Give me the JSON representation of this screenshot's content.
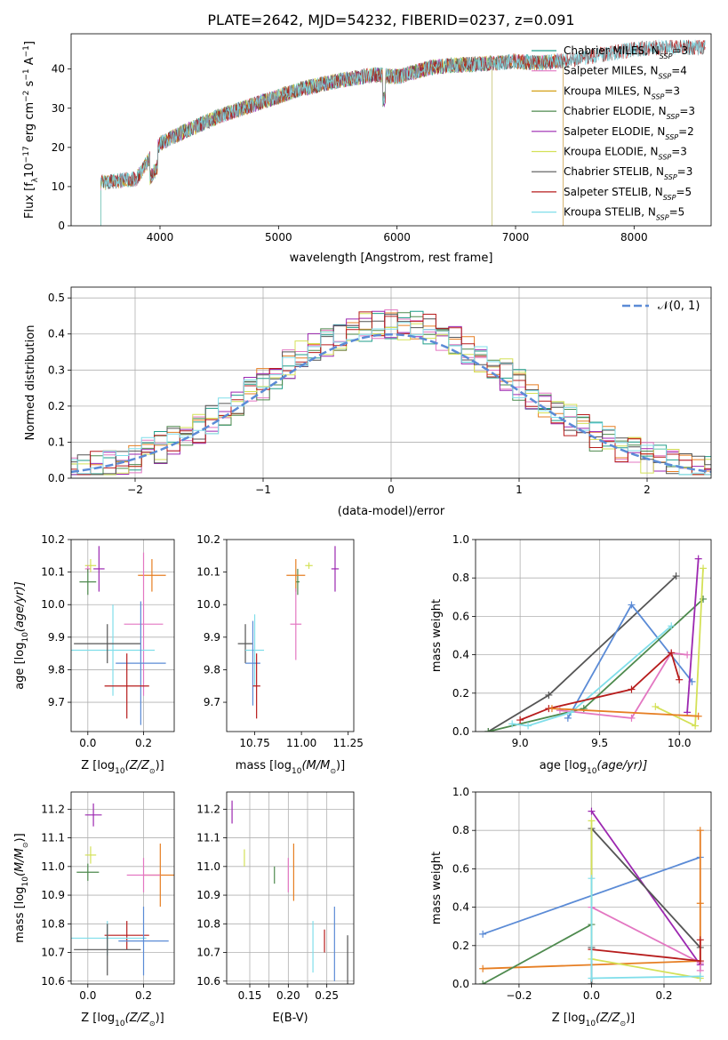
{
  "figure_title": "PLATE=2642, MJD=54232, FIBERID=0237, z=0.091",
  "colors": {
    "Chabrier MILES": "#1f9e89",
    "Salpeter MILES": "#e377c2",
    "Kroupa MILES": "#d4a017",
    "Chabrier ELODIE": "#4e8a4e",
    "Salpeter ELODIE": "#9c27b0",
    "Kroupa ELODIE": "#d4e157",
    "Chabrier STELIB": "#555555",
    "Salpeter STELIB": "#b71c1c",
    "Kroupa STELIB": "#80deea",
    "Orange": "#e67e22",
    "Blue": "#5b8bd6"
  },
  "chart_data": [
    {
      "id": "spectrum",
      "type": "line",
      "xlabel": "wavelength [Angstrom, rest frame]",
      "ylabel": "Flux [f",
      "ylabel_parts": [
        "Flux [f",
        "λ",
        "10",
        "−17",
        " erg cm",
        "−2",
        " s",
        "−1",
        " A",
        "−1",
        "]"
      ],
      "xlim": [
        3250,
        8650
      ],
      "ylim": [
        0,
        49
      ],
      "xticks": [
        4000,
        5000,
        6000,
        7000,
        8000
      ],
      "yticks": [
        0,
        10,
        20,
        30,
        40
      ],
      "continuum": {
        "x": [
          3500,
          3800,
          4000,
          4200,
          4500,
          4800,
          5000,
          5200,
          5500,
          5800,
          6000,
          6300,
          6500,
          6800,
          7000,
          7200,
          7500,
          7800,
          8000,
          8200
        ],
        "y": [
          11,
          12,
          21,
          24,
          28,
          31,
          33,
          35,
          37,
          38.5,
          38,
          40.5,
          41,
          41.5,
          42,
          41.5,
          42.5,
          44,
          45,
          45.5
        ]
      },
      "legend": [
        {
          "label": "Chabrier MILES",
          "nssp": "3"
        },
        {
          "label": "Salpeter MILES",
          "nssp": "4"
        },
        {
          "label": "Kroupa MILES",
          "nssp": "3"
        },
        {
          "label": "Chabrier ELODIE",
          "nssp": "3"
        },
        {
          "label": "Salpeter ELODIE",
          "nssp": "2"
        },
        {
          "label": "Kroupa ELODIE",
          "nssp": "3"
        },
        {
          "label": "Chabrier STELIB",
          "nssp": "3"
        },
        {
          "label": "Salpeter STELIB",
          "nssp": "5"
        },
        {
          "label": "Kroupa STELIB",
          "nssp": "5"
        }
      ],
      "legend_nssp_prefix": "N",
      "legend_nssp_sub": "SSP",
      "legend_placement": "top-right"
    },
    {
      "id": "residuals",
      "type": "histogram",
      "xlabel": "(data-model)/error",
      "ylabel": "Normed distribution",
      "xlim": [
        -2.5,
        2.5
      ],
      "ylim": [
        0,
        0.53
      ],
      "xticks": [
        -2,
        -1,
        0,
        1,
        2
      ],
      "yticks": [
        0.0,
        0.1,
        0.2,
        0.3,
        0.4,
        0.5
      ],
      "grid": true,
      "bin_width": 0.1,
      "gaussian_label": "𝒩(0, 1)",
      "legend_placement": "top-right"
    },
    {
      "id": "age_vs_Z",
      "type": "errorbar",
      "xlabel": "Z [log",
      "xlabel_sub": "10",
      "xlabel_tail": "(Z/Z",
      "xlabel_end": ")]",
      "ylabel": "age  [log",
      "ylabel_sub": "10",
      "ylabel_tail": "(age/yr)]",
      "xlim": [
        -0.06,
        0.31
      ],
      "ylim": [
        9.61,
        10.2
      ],
      "xticks": [
        0.0,
        0.2
      ],
      "yticks": [
        9.7,
        9.8,
        9.9,
        10.0,
        10.1,
        10.2
      ],
      "grid": true,
      "points": [
        {
          "c": "Salpeter ELODIE",
          "x": 0.04,
          "y": 10.11,
          "xe": 0.02,
          "ye": 0.07
        },
        {
          "c": "Kroupa ELODIE",
          "x": 0.01,
          "y": 10.12,
          "xe": 0.02,
          "ye": 0.02
        },
        {
          "c": "Salpeter MILES",
          "x": 0.0,
          "y": 10.11,
          "xe": 0.01,
          "ye": 0.01
        },
        {
          "c": "Chabrier ELODIE",
          "x": 0.0,
          "y": 10.07,
          "xe": 0.03,
          "ye": 0.04
        },
        {
          "c": "Orange",
          "x": 0.23,
          "y": 10.09,
          "xe": 0.05,
          "ye": 0.05
        },
        {
          "c": "Salpeter MILES",
          "x": 0.2,
          "y": 9.94,
          "xe": 0.07,
          "ye": 0.22
        },
        {
          "c": "Kroupa STELIB",
          "x": 0.09,
          "y": 9.86,
          "xe": 0.15,
          "ye": 0.14
        },
        {
          "c": "Chabrier STELIB",
          "x": 0.07,
          "y": 9.88,
          "xe": 0.12,
          "ye": 0.06
        },
        {
          "c": "Blue",
          "x": 0.19,
          "y": 9.82,
          "xe": 0.09,
          "ye": 0.19
        },
        {
          "c": "Salpeter STELIB",
          "x": 0.14,
          "y": 9.75,
          "xe": 0.08,
          "ye": 0.1
        }
      ]
    },
    {
      "id": "age_vs_mass",
      "type": "errorbar",
      "xlabel": "mass [log",
      "xlabel_sub": "10",
      "xlabel_tail": "(M/M",
      "xlabel_end": ")]",
      "ylabel": "",
      "xlim": [
        10.6,
        11.28
      ],
      "ylim": [
        9.61,
        10.2
      ],
      "xticks": [
        10.75,
        11.0,
        11.25
      ],
      "yticks": [
        9.7,
        9.8,
        9.9,
        10.0,
        10.1,
        10.2
      ],
      "grid": false,
      "points": [
        {
          "c": "Salpeter ELODIE",
          "x": 11.18,
          "y": 10.11,
          "xe": 0.02,
          "ye": 0.07
        },
        {
          "c": "Kroupa ELODIE",
          "x": 11.04,
          "y": 10.12,
          "xe": 0.02,
          "ye": 0.01
        },
        {
          "c": "Chabrier ELODIE",
          "x": 10.98,
          "y": 10.07,
          "xe": 0.01,
          "ye": 0.04
        },
        {
          "c": "Orange",
          "x": 10.97,
          "y": 10.09,
          "xe": 0.05,
          "ye": 0.05
        },
        {
          "c": "Salpeter MILES",
          "x": 10.97,
          "y": 9.94,
          "xe": 0.03,
          "ye": 0.11
        },
        {
          "c": "Chabrier STELIB",
          "x": 10.7,
          "y": 9.88,
          "xe": 0.04,
          "ye": 0.06
        },
        {
          "c": "Kroupa STELIB",
          "x": 10.75,
          "y": 9.86,
          "xe": 0.05,
          "ye": 0.11
        },
        {
          "c": "Blue",
          "x": 10.74,
          "y": 9.82,
          "xe": 0.04,
          "ye": 0.13
        },
        {
          "c": "Salpeter STELIB",
          "x": 10.76,
          "y": 9.75,
          "xe": 0.02,
          "ye": 0.1
        }
      ]
    },
    {
      "id": "weight_vs_age",
      "type": "line",
      "xlabel": "age  [log",
      "xlabel_sub": "10",
      "xlabel_tail": "(age/yr)]",
      "ylabel": "mass weight",
      "xlim": [
        8.72,
        10.2
      ],
      "ylim": [
        0,
        1.0
      ],
      "xticks": [
        9.0,
        9.5,
        10.0
      ],
      "yticks": [
        0.0,
        0.2,
        0.4,
        0.6,
        0.8,
        1.0
      ],
      "grid": true,
      "series": [
        {
          "c": "Chabrier STELIB",
          "x": [
            8.8,
            9.18,
            9.98
          ],
          "y": [
            0.0,
            0.19,
            0.81
          ]
        },
        {
          "c": "Blue",
          "x": [
            9.3,
            9.7,
            10.08
          ],
          "y": [
            0.07,
            0.66,
            0.26
          ]
        },
        {
          "c": "Chabrier ELODIE",
          "x": [
            8.8,
            9.4,
            10.15
          ],
          "y": [
            0.0,
            0.12,
            0.69
          ]
        },
        {
          "c": "Salpeter ELODIE",
          "x": [
            10.05,
            10.12
          ],
          "y": [
            0.1,
            0.9
          ]
        },
        {
          "c": "Kroupa ELODIE",
          "x": [
            9.85,
            10.1,
            10.15
          ],
          "y": [
            0.13,
            0.03,
            0.85
          ]
        },
        {
          "c": "Salpeter MILES",
          "x": [
            9.25,
            9.7,
            9.95,
            10.05
          ],
          "y": [
            0.11,
            0.07,
            0.41,
            0.4
          ]
        },
        {
          "c": "Kroupa STELIB",
          "x": [
            8.95,
            9.05,
            9.32,
            9.95
          ],
          "y": [
            0.04,
            0.03,
            0.1,
            0.55
          ]
        },
        {
          "c": "Salpeter STELIB",
          "x": [
            9.0,
            9.18,
            9.7,
            9.95,
            10.0
          ],
          "y": [
            0.06,
            0.12,
            0.22,
            0.41,
            0.27
          ]
        },
        {
          "c": "Orange",
          "x": [
            9.2,
            10.12
          ],
          "y": [
            0.12,
            0.08
          ]
        }
      ]
    },
    {
      "id": "mass_vs_Z",
      "type": "errorbar",
      "xlabel": "Z [log",
      "xlabel_sub": "10",
      "xlabel_tail": "(Z/Z",
      "xlabel_end": ")]",
      "ylabel": "mass [log",
      "ylabel_sub": "10",
      "ylabel_tail": "(M/M",
      "ylabel_end": ")]",
      "xlim": [
        -0.06,
        0.31
      ],
      "ylim": [
        10.59,
        11.26
      ],
      "xticks": [
        0.0,
        0.2
      ],
      "yticks": [
        10.6,
        10.7,
        10.8,
        10.9,
        11.0,
        11.1,
        11.2
      ],
      "grid": true,
      "points": [
        {
          "c": "Salpeter ELODIE",
          "x": 0.02,
          "y": 11.18,
          "xe": 0.03,
          "ye": 0.04
        },
        {
          "c": "Kroupa ELODIE",
          "x": 0.01,
          "y": 11.04,
          "xe": 0.02,
          "ye": 0.03
        },
        {
          "c": "Chabrier ELODIE",
          "x": 0.0,
          "y": 10.98,
          "xe": 0.04,
          "ye": 0.03
        },
        {
          "c": "Orange",
          "x": 0.26,
          "y": 10.97,
          "xe": 0.06,
          "ye": 0.11
        },
        {
          "c": "Salpeter MILES",
          "x": 0.2,
          "y": 10.97,
          "xe": 0.06,
          "ye": 0.06
        },
        {
          "c": "Salpeter STELIB",
          "x": 0.14,
          "y": 10.76,
          "xe": 0.08,
          "ye": 0.05
        },
        {
          "c": "Kroupa STELIB",
          "x": 0.07,
          "y": 10.75,
          "xe": 0.14,
          "ye": 0.06
        },
        {
          "c": "Blue",
          "x": 0.2,
          "y": 10.74,
          "xe": 0.09,
          "ye": 0.12
        },
        {
          "c": "Chabrier STELIB",
          "x": 0.07,
          "y": 10.71,
          "xe": 0.12,
          "ye": 0.09
        }
      ]
    },
    {
      "id": "mass_vs_ebv",
      "type": "errorbar",
      "xlabel": "E(B-V)",
      "ylabel": "",
      "xlim": [
        0.12,
        0.285
      ],
      "ylim": [
        10.59,
        11.26
      ],
      "xticks": [
        0.15,
        0.175,
        0.2,
        0.225,
        0.25
      ],
      "xtick_labels": [
        "0.15",
        "",
        "0.20",
        "",
        "0.25"
      ],
      "yticks": [
        10.6,
        10.7,
        10.8,
        10.9,
        11.0,
        11.1,
        11.2
      ],
      "grid": true,
      "points": [
        {
          "c": "Salpeter ELODIE",
          "x": 0.127,
          "y": 11.19,
          "xe": 0,
          "ye": 0.04
        },
        {
          "c": "Kroupa ELODIE",
          "x": 0.143,
          "y": 11.03,
          "xe": 0,
          "ye": 0.03
        },
        {
          "c": "Chabrier ELODIE",
          "x": 0.182,
          "y": 10.97,
          "xe": 0,
          "ye": 0.03
        },
        {
          "c": "Salpeter MILES",
          "x": 0.2,
          "y": 10.97,
          "xe": 0,
          "ye": 0.06
        },
        {
          "c": "Orange",
          "x": 0.207,
          "y": 10.98,
          "xe": 0,
          "ye": 0.1
        },
        {
          "c": "Kroupa STELIB",
          "x": 0.232,
          "y": 10.72,
          "xe": 0,
          "ye": 0.09
        },
        {
          "c": "Salpeter STELIB",
          "x": 0.247,
          "y": 10.74,
          "xe": 0,
          "ye": 0.04
        },
        {
          "c": "Blue",
          "x": 0.26,
          "y": 10.73,
          "xe": 0,
          "ye": 0.13
        },
        {
          "c": "Chabrier STELIB",
          "x": 0.277,
          "y": 10.67,
          "xe": 0,
          "ye": 0.09
        }
      ]
    },
    {
      "id": "weight_vs_Z",
      "type": "line",
      "xlabel": "Z [log",
      "xlabel_sub": "10",
      "xlabel_tail": "(Z/Z",
      "xlabel_end": ")]",
      "ylabel": "mass weight",
      "xlim": [
        -0.32,
        0.33
      ],
      "ylim": [
        0,
        1.0
      ],
      "xticks": [
        -0.2,
        0.0,
        0.2
      ],
      "yticks": [
        0.0,
        0.2,
        0.4,
        0.6,
        0.8,
        1.0
      ],
      "grid": true,
      "series": [
        {
          "c": "Blue",
          "x": [
            -0.3,
            0.3
          ],
          "y": [
            0.26,
            0.66
          ]
        },
        {
          "c": "Orange",
          "x": [
            -0.3,
            0.3,
            0.3,
            0.3
          ],
          "y": [
            0.08,
            0.12,
            0.42,
            0.8
          ]
        },
        {
          "c": "Chabrier ELODIE",
          "x": [
            -0.3,
            0.0
          ],
          "y": [
            0.0,
            0.31
          ]
        },
        {
          "c": "Salpeter ELODIE",
          "x": [
            0.0,
            0.3
          ],
          "y": [
            0.9,
            0.1
          ]
        },
        {
          "c": "Chabrier STELIB",
          "x": [
            0.0,
            0.0,
            0.0,
            0.3
          ],
          "y": [
            0.0,
            0.19,
            0.81,
            0.19
          ]
        },
        {
          "c": "Kroupa ELODIE",
          "x": [
            0.0,
            0.0,
            0.3
          ],
          "y": [
            0.85,
            0.13,
            0.03
          ]
        },
        {
          "c": "Salpeter MILES",
          "x": [
            0.0,
            0.3,
            0.3
          ],
          "y": [
            0.4,
            0.11,
            0.07
          ]
        },
        {
          "c": "Salpeter STELIB",
          "x": [
            0.0,
            0.3,
            0.3
          ],
          "y": [
            0.18,
            0.12,
            0.23
          ]
        },
        {
          "c": "Kroupa STELIB",
          "x": [
            0.0,
            0.0,
            0.3
          ],
          "y": [
            0.55,
            0.03,
            0.04
          ]
        }
      ]
    }
  ]
}
